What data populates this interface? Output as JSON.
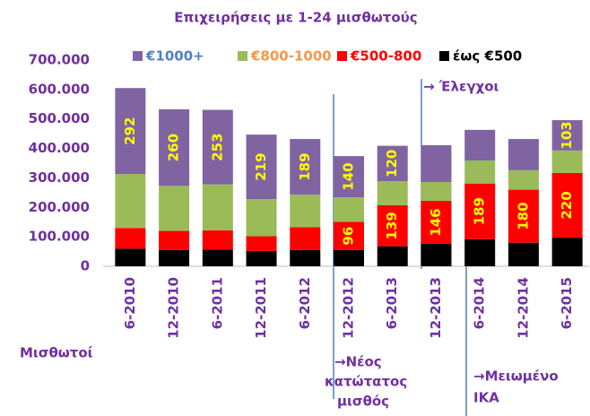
{
  "chart_data": {
    "type": "stacked_bar",
    "title": "Επιχειρήσεις με 1-24 μισθωτούς",
    "x_label": "Μισθωτοί",
    "categories": [
      "6-2010",
      "12-2010",
      "6-2011",
      "12-2011",
      "6-2012",
      "12-2012",
      "6-2013",
      "12-2013",
      "6-2014",
      "12-2014",
      "6-2015"
    ],
    "series": [
      {
        "name": "έως €500",
        "color": "#000000",
        "label_color": "#000000",
        "values": [
          60000,
          55000,
          57000,
          52000,
          55000,
          55000,
          68000,
          76000,
          92000,
          80000,
          97000
        ]
      },
      {
        "name": "€500-800",
        "color": "#ff0000",
        "label_color": "#ff0000",
        "values": [
          70000,
          65000,
          65000,
          50000,
          78000,
          96000,
          139000,
          146000,
          189000,
          180000,
          220000
        ],
        "value_labels": [
          null,
          null,
          null,
          null,
          null,
          "96",
          "139",
          "146",
          "189",
          "180",
          "220"
        ]
      },
      {
        "name": "€800-1000",
        "color": "#9bbb59",
        "label_color": "#f79646",
        "values": [
          183000,
          153000,
          156000,
          126000,
          110000,
          83000,
          82000,
          64000,
          78000,
          66000,
          76000
        ]
      },
      {
        "name": "€1000+",
        "color": "#8064a2",
        "label_color": "#4f81bd",
        "values": [
          292000,
          260000,
          253000,
          219000,
          189000,
          140000,
          120000,
          125000,
          104000,
          106000,
          103000
        ],
        "value_labels": [
          "292",
          "260",
          "253",
          "219",
          "189",
          "140",
          "120",
          null,
          null,
          null,
          "103"
        ]
      }
    ],
    "ylim": [
      0,
      700000
    ],
    "yticks": [
      0,
      {
        "value": 100000,
        "label": "100.000"
      },
      {
        "value": 200000,
        "label": "200.000"
      },
      {
        "value": 300000,
        "label": "300.000"
      },
      {
        "value": 400000,
        "label": "400.000"
      },
      {
        "value": 500000,
        "label": "500.000"
      },
      {
        "value": 600000,
        "label": "600.000"
      },
      {
        "value": 700000,
        "label": "700.000"
      }
    ],
    "grid": false,
    "annotations": [
      "→ Έλεγχοι",
      "→Νέος",
      "κατώτατος",
      "μισθός",
      "→Μειωμένο",
      "ΙΚΑ"
    ]
  }
}
